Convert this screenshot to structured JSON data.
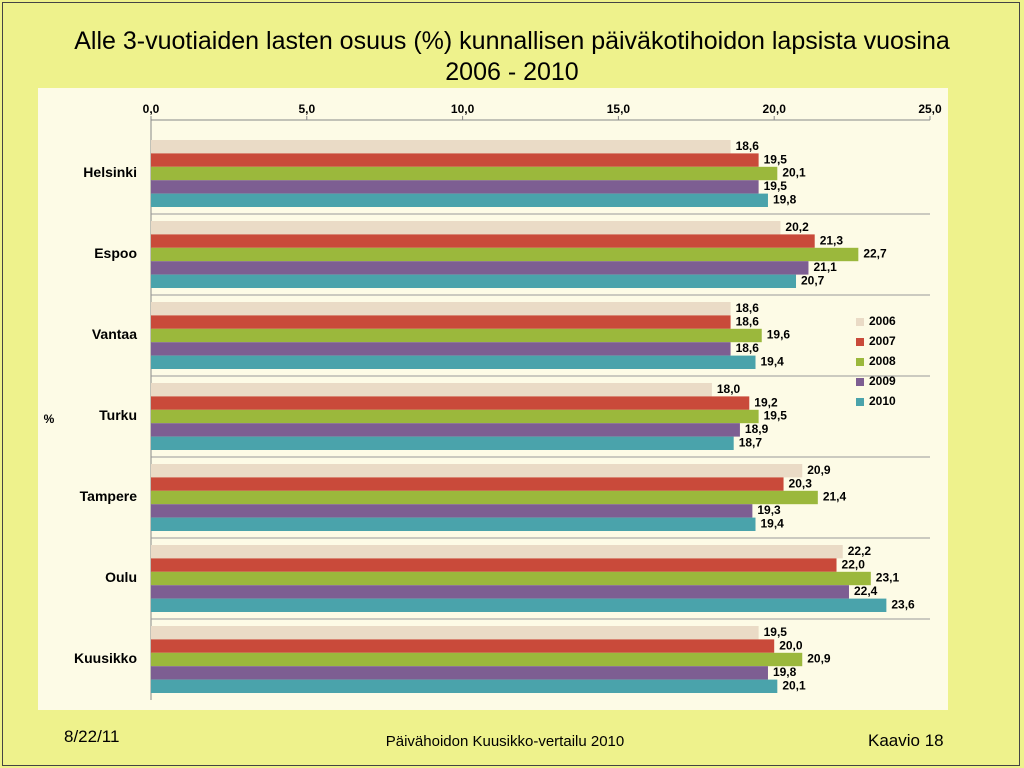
{
  "chart_data": {
    "type": "hbar",
    "title": "Alle 3-vuotiaiden lasten osuus (%) kunnallisen päiväkotihoidon lapsista vuosina 2006 - 2010",
    "ylabel": "%",
    "categories": [
      "Helsinki",
      "Espoo",
      "Vantaa",
      "Turku",
      "Tampere",
      "Oulu",
      "Kuusikko"
    ],
    "series": [
      {
        "name": "2006",
        "color": "#eadbc6",
        "values": [
          18.6,
          20.2,
          18.6,
          18.0,
          20.9,
          22.2,
          19.5
        ],
        "value_labels": [
          "18,6",
          "20,2",
          "18,6",
          "18,0",
          "20,9",
          "22,2",
          "19,5"
        ]
      },
      {
        "name": "2007",
        "color": "#c94a3a",
        "values": [
          19.5,
          21.3,
          18.6,
          19.2,
          20.3,
          22.0,
          20.0
        ],
        "value_labels": [
          "19,5",
          "21,3",
          "18,6",
          "19,2",
          "20,3",
          "22,0",
          "20,0"
        ]
      },
      {
        "name": "2008",
        "color": "#9bb83c",
        "values": [
          20.1,
          22.7,
          19.6,
          19.5,
          21.4,
          23.1,
          20.9
        ],
        "value_labels": [
          "20,1",
          "22,7",
          "19,6",
          "19,5",
          "21,4",
          "23,1",
          "20,9"
        ]
      },
      {
        "name": "2009",
        "color": "#7d5e92",
        "values": [
          19.5,
          21.1,
          18.6,
          18.9,
          19.3,
          22.4,
          19.8
        ],
        "value_labels": [
          "19,5",
          "21,1",
          "18,6",
          "18,9",
          "19,3",
          "22,4",
          "19,8"
        ]
      },
      {
        "name": "2010",
        "color": "#4aa3ab",
        "values": [
          19.8,
          20.7,
          19.4,
          18.7,
          19.4,
          23.6,
          20.1
        ],
        "value_labels": [
          "19,8",
          "20,7",
          "19,4",
          "18,7",
          "19,4",
          "23,6",
          "20,1"
        ]
      }
    ],
    "xlim": [
      0,
      25
    ],
    "xticks": [
      {
        "value": 0,
        "label": "0,0"
      },
      {
        "value": 5,
        "label": "5,0"
      },
      {
        "value": 10,
        "label": "10,0"
      },
      {
        "value": 15,
        "label": "15,0"
      },
      {
        "value": 20,
        "label": "20,0"
      },
      {
        "value": 25,
        "label": "25,0"
      }
    ],
    "grid": false,
    "legend": "right"
  },
  "footer": {
    "date": "8/22/11",
    "source": "Päivähoidon Kuusikko-vertailu 2010",
    "page": "Kaavio 18"
  }
}
